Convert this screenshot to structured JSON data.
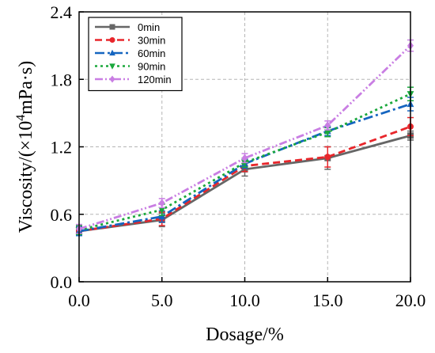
{
  "chart_data": {
    "type": "line",
    "title": "",
    "xlabel": "Dosage/%",
    "ylabel_prefix": "Viscosity/(×10",
    "ylabel_exp": "4",
    "ylabel_suffix": "mPa·s)",
    "x": [
      0,
      5,
      10,
      15,
      20
    ],
    "xlim": [
      0,
      20
    ],
    "ylim": [
      0,
      2.4
    ],
    "x_ticks": [
      "0.0",
      "5.0",
      "10.0",
      "15.0",
      "20.0"
    ],
    "x_tick_values": [
      0,
      5,
      10,
      15,
      20
    ],
    "y_ticks": [
      "0.0",
      "0.6",
      "1.2",
      "1.8",
      "2.4"
    ],
    "y_tick_values": [
      0,
      0.6,
      1.2,
      1.8,
      2.4
    ],
    "grid": true,
    "legend_position": "top-left",
    "series": [
      {
        "name": "0min",
        "values": [
          0.45,
          0.55,
          1.0,
          1.1,
          1.3
        ],
        "errors": [
          0.04,
          0.06,
          0.06,
          0.1,
          0.04
        ],
        "color": "#666666",
        "marker": "square",
        "dash": "solid"
      },
      {
        "name": "30min",
        "values": [
          0.45,
          0.56,
          1.03,
          1.11,
          1.38
        ],
        "errors": [
          0.04,
          0.06,
          0.05,
          0.09,
          0.08
        ],
        "color": "#e8262b",
        "marker": "circle",
        "dash": "dash"
      },
      {
        "name": "60min",
        "values": [
          0.45,
          0.58,
          1.05,
          1.34,
          1.58
        ],
        "errors": [
          0.04,
          0.05,
          0.04,
          0.04,
          0.06
        ],
        "color": "#1565c0",
        "marker": "triangle-up",
        "dash": "dashdot"
      },
      {
        "name": "90min",
        "values": [
          0.46,
          0.64,
          1.06,
          1.33,
          1.67
        ],
        "errors": [
          0.04,
          0.05,
          0.04,
          0.04,
          0.06
        ],
        "color": "#1aa83c",
        "marker": "triangle-down",
        "dash": "dot"
      },
      {
        "name": "120min",
        "values": [
          0.47,
          0.7,
          1.1,
          1.39,
          2.1
        ],
        "errors": [
          0.04,
          0.04,
          0.04,
          0.04,
          0.05
        ],
        "color": "#c97ee3",
        "marker": "diamond",
        "dash": "dashdotdot"
      }
    ]
  }
}
